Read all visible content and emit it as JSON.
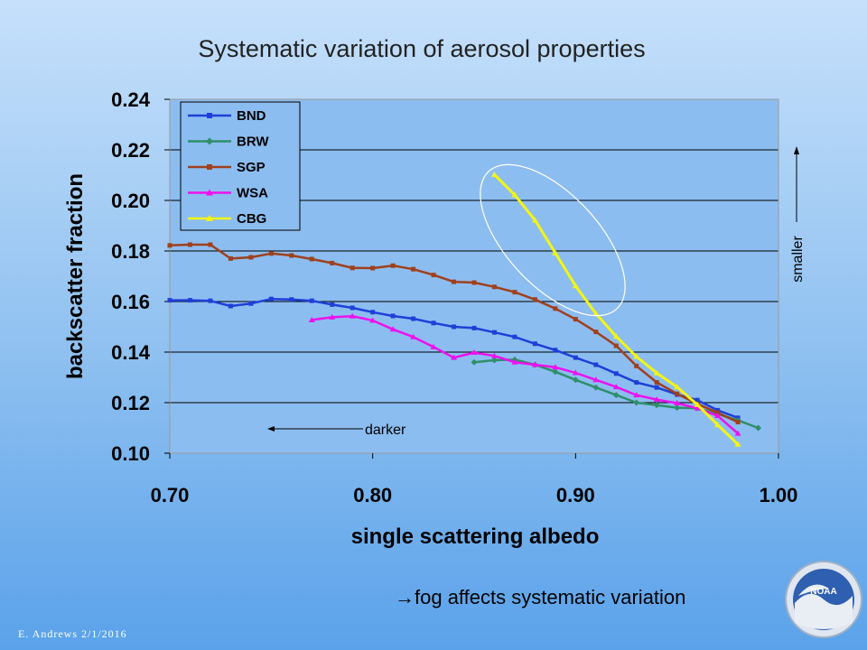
{
  "slide": {
    "title": "Systematic variation of aerosol properties",
    "note": "→fog affects systematic variation",
    "credit": "E. Andrews   2/1/2016",
    "logo_text": "NOAA"
  },
  "chart_data": {
    "type": "line",
    "title": "Systematic variation of aerosol properties",
    "xlabel": "single scattering albedo",
    "ylabel": "backscatter fraction",
    "xlim": [
      0.7,
      1.0
    ],
    "ylim": [
      0.1,
      0.24
    ],
    "x_ticks": [
      "0.70",
      "0.80",
      "0.90",
      "1.00"
    ],
    "y_ticks": [
      "0.10",
      "0.12",
      "0.14",
      "0.16",
      "0.18",
      "0.20",
      "0.22",
      "0.24"
    ],
    "grid": "horizontal",
    "legend_position": "top-left",
    "series": [
      {
        "name": "BND",
        "color": "#1f3fd8",
        "marker": "square",
        "points": [
          [
            0.7,
            0.1605
          ],
          [
            0.71,
            0.1605
          ],
          [
            0.72,
            0.1603
          ],
          [
            0.73,
            0.1582
          ],
          [
            0.74,
            0.1592
          ],
          [
            0.75,
            0.161
          ],
          [
            0.76,
            0.1608
          ],
          [
            0.77,
            0.1603
          ],
          [
            0.78,
            0.1588
          ],
          [
            0.79,
            0.1575
          ],
          [
            0.8,
            0.1558
          ],
          [
            0.81,
            0.1543
          ],
          [
            0.82,
            0.1532
          ],
          [
            0.83,
            0.1515
          ],
          [
            0.84,
            0.15
          ],
          [
            0.85,
            0.1495
          ],
          [
            0.86,
            0.1478
          ],
          [
            0.87,
            0.146
          ],
          [
            0.88,
            0.1433
          ],
          [
            0.89,
            0.1408
          ],
          [
            0.9,
            0.1378
          ],
          [
            0.91,
            0.135
          ],
          [
            0.92,
            0.1315
          ],
          [
            0.93,
            0.128
          ],
          [
            0.94,
            0.126
          ],
          [
            0.95,
            0.1232
          ],
          [
            0.96,
            0.121
          ],
          [
            0.97,
            0.117
          ],
          [
            0.98,
            0.114
          ]
        ]
      },
      {
        "name": "BRW",
        "color": "#2e8f6a",
        "marker": "diamond",
        "points": [
          [
            0.85,
            0.136
          ],
          [
            0.86,
            0.1368
          ],
          [
            0.87,
            0.137
          ],
          [
            0.88,
            0.135
          ],
          [
            0.89,
            0.1322
          ],
          [
            0.9,
            0.129
          ],
          [
            0.91,
            0.126
          ],
          [
            0.92,
            0.123
          ],
          [
            0.93,
            0.12
          ],
          [
            0.94,
            0.119
          ],
          [
            0.95,
            0.118
          ],
          [
            0.96,
            0.1178
          ],
          [
            0.97,
            0.1155
          ],
          [
            0.98,
            0.113
          ],
          [
            0.99,
            0.11
          ]
        ]
      },
      {
        "name": "SGP",
        "color": "#a0401c",
        "marker": "square",
        "points": [
          [
            0.7,
            0.1822
          ],
          [
            0.71,
            0.1825
          ],
          [
            0.72,
            0.1825
          ],
          [
            0.73,
            0.177
          ],
          [
            0.74,
            0.1775
          ],
          [
            0.75,
            0.179
          ],
          [
            0.76,
            0.1782
          ],
          [
            0.77,
            0.1768
          ],
          [
            0.78,
            0.1752
          ],
          [
            0.79,
            0.1733
          ],
          [
            0.8,
            0.1732
          ],
          [
            0.81,
            0.1742
          ],
          [
            0.82,
            0.1728
          ],
          [
            0.83,
            0.1705
          ],
          [
            0.84,
            0.1678
          ],
          [
            0.85,
            0.1675
          ],
          [
            0.86,
            0.1658
          ],
          [
            0.87,
            0.1637
          ],
          [
            0.88,
            0.1608
          ],
          [
            0.89,
            0.1572
          ],
          [
            0.9,
            0.153
          ],
          [
            0.91,
            0.148
          ],
          [
            0.92,
            0.1425
          ],
          [
            0.93,
            0.1345
          ],
          [
            0.94,
            0.128
          ],
          [
            0.95,
            0.1235
          ],
          [
            0.96,
            0.1195
          ],
          [
            0.97,
            0.116
          ],
          [
            0.98,
            0.1123
          ]
        ]
      },
      {
        "name": "WSA",
        "color": "#ee10ee",
        "marker": "triangle",
        "points": [
          [
            0.77,
            0.1527
          ],
          [
            0.78,
            0.1538
          ],
          [
            0.79,
            0.1542
          ],
          [
            0.8,
            0.1525
          ],
          [
            0.81,
            0.149
          ],
          [
            0.82,
            0.146
          ],
          [
            0.83,
            0.142
          ],
          [
            0.84,
            0.1378
          ],
          [
            0.85,
            0.1398
          ],
          [
            0.86,
            0.1385
          ],
          [
            0.87,
            0.136
          ],
          [
            0.88,
            0.135
          ],
          [
            0.89,
            0.134
          ],
          [
            0.9,
            0.1318
          ],
          [
            0.91,
            0.129
          ],
          [
            0.92,
            0.1262
          ],
          [
            0.93,
            0.123
          ],
          [
            0.94,
            0.1212
          ],
          [
            0.95,
            0.1198
          ],
          [
            0.96,
            0.1178
          ],
          [
            0.97,
            0.1148
          ],
          [
            0.98,
            0.1078
          ]
        ]
      },
      {
        "name": "CBG",
        "color": "#f5f510",
        "marker": "triangle",
        "points": [
          [
            0.86,
            0.2102
          ],
          [
            0.87,
            0.2022
          ],
          [
            0.88,
            0.1922
          ],
          [
            0.89,
            0.1792
          ],
          [
            0.9,
            0.1662
          ],
          [
            0.91,
            0.1552
          ],
          [
            0.92,
            0.1462
          ],
          [
            0.93,
            0.1382
          ],
          [
            0.94,
            0.1317
          ],
          [
            0.95,
            0.1262
          ],
          [
            0.96,
            0.1192
          ],
          [
            0.97,
            0.1112
          ],
          [
            0.98,
            0.1035
          ]
        ]
      }
    ],
    "annotations": {
      "darker": "darker",
      "smaller": "smaller"
    }
  }
}
